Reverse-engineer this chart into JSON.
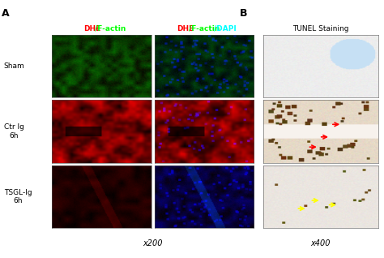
{
  "title_A": "A",
  "title_B": "B",
  "col1_header_red": "DHE",
  "col1_header_green": "/F-actin",
  "col2_header_red": "DHE",
  "col2_header_green": "/F-actin",
  "col2_header_blue": "/DAPI",
  "col3_header": "TUNEL Staining",
  "row_labels": [
    "Sham",
    "Ctr Ig\n6h",
    "TSGL-Ig\n6h"
  ],
  "xscale_left": "x200",
  "xscale_right": "x400",
  "red_arrow_color": "#FF0000",
  "yellow_arrow_color": "#FFFF00",
  "figure_bg": "#FFFFFF"
}
